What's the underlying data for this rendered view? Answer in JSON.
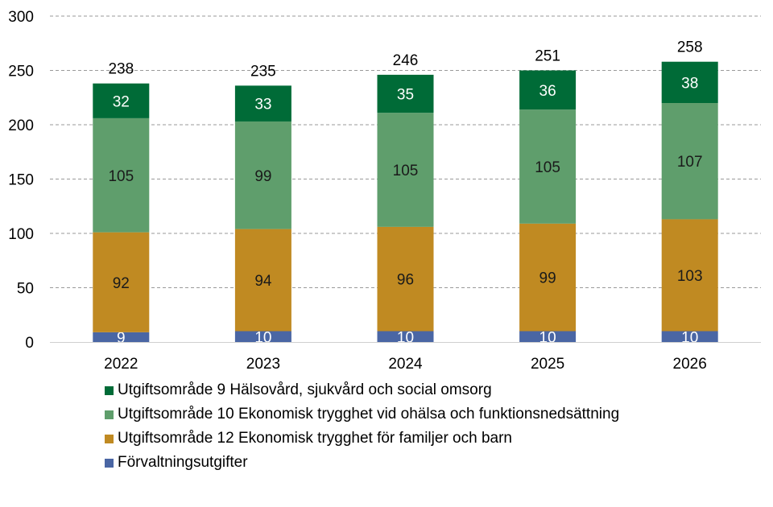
{
  "chart_data": {
    "type": "bar",
    "stacked": true,
    "title": "",
    "xlabel": "",
    "ylabel": "",
    "ylim": [
      0,
      300
    ],
    "yticks": [
      0,
      50,
      100,
      150,
      200,
      250,
      300
    ],
    "grid": true,
    "legend_position": "bottom",
    "categories": [
      "2022",
      "2023",
      "2024",
      "2025",
      "2026"
    ],
    "totals": [
      238,
      235,
      246,
      251,
      258
    ],
    "series": [
      {
        "name": "Förvaltningsutgifter",
        "color": "#4a66a4",
        "label_color": "#ffffff",
        "values": [
          9,
          10,
          10,
          10,
          10
        ]
      },
      {
        "name": "Utgiftsområde 12 Ekonomisk trygghet för familjer och barn",
        "color": "#c08a22",
        "label_color": "#1a1a1a",
        "values": [
          92,
          94,
          96,
          99,
          103
        ]
      },
      {
        "name": "Utgiftsområde 10 Ekonomisk trygghet vid ohälsa och funktionsnedsättning",
        "color": "#5f9e6c",
        "label_color": "#1a1a1a",
        "values": [
          105,
          99,
          105,
          105,
          107
        ]
      },
      {
        "name": "Utgiftsområde 9 Hälsovård, sjukvård och social omsorg",
        "color": "#006b37",
        "label_color": "#ffffff",
        "values": [
          32,
          33,
          35,
          36,
          38
        ]
      }
    ],
    "legend_order": [
      3,
      2,
      1,
      0
    ]
  }
}
